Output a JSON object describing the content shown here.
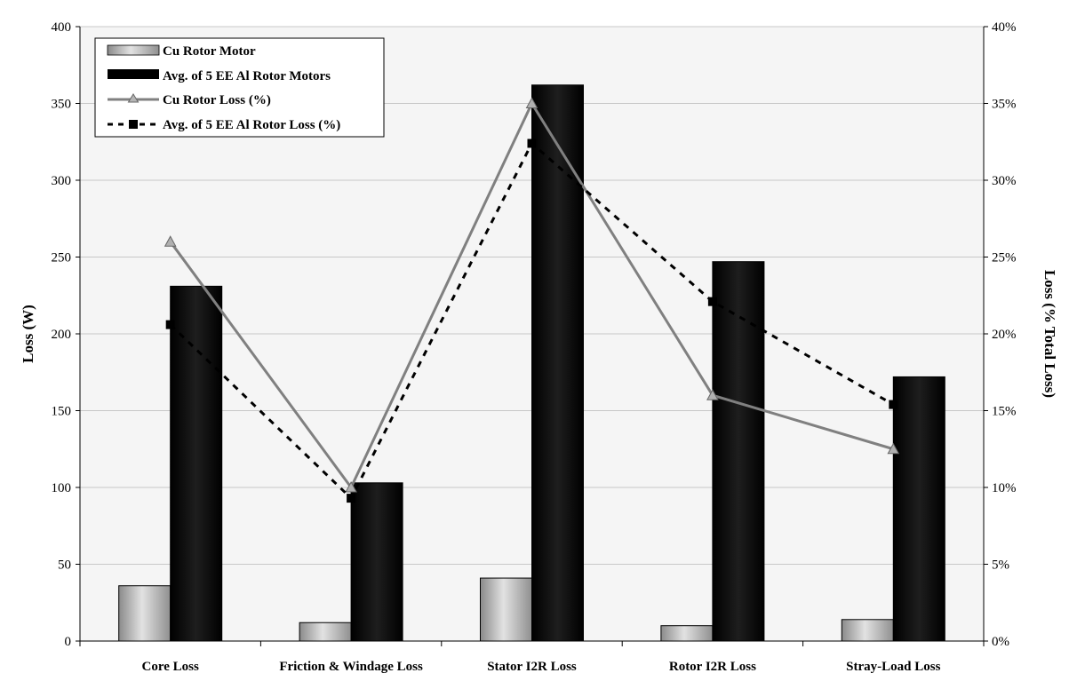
{
  "chart_data": {
    "type": "bar",
    "categories": [
      "Core Loss",
      "Friction & Windage Loss",
      "Stator I2R Loss",
      "Rotor I2R Loss",
      "Stray-Load Loss"
    ],
    "series": [
      {
        "name": "Cu Rotor Motor",
        "kind": "bar",
        "axis": "left",
        "color": "#b5b5b5",
        "values": [
          36,
          12,
          41,
          10,
          14
        ]
      },
      {
        "name": "Avg. of 5 EE Al Rotor Motors",
        "kind": "bar",
        "axis": "left",
        "color": "#000000",
        "values": [
          231,
          103,
          362,
          247,
          172
        ]
      },
      {
        "name": "Cu Rotor Loss (%)",
        "kind": "line",
        "axis": "right",
        "color": "#808080",
        "marker": "triangle",
        "values": [
          26,
          10,
          35,
          16,
          12.5
        ]
      },
      {
        "name": "Avg. of 5 EE Al Rotor Loss (%)",
        "kind": "line",
        "axis": "right",
        "color": "#000000",
        "marker": "square",
        "dashed": true,
        "values": [
          20.6,
          9.3,
          32.4,
          22.1,
          15.4
        ]
      }
    ],
    "ylabel": "Loss (W)",
    "y2label": "Loss (% Total Loss)",
    "ylim": [
      0,
      400
    ],
    "y2lim": [
      0,
      40
    ],
    "yticks": [
      "0",
      "50",
      "100",
      "150",
      "200",
      "250",
      "300",
      "350",
      "400"
    ],
    "y2ticks": [
      "0%",
      "5%",
      "10%",
      "15%",
      "20%",
      "25%",
      "30%",
      "35%",
      "40%"
    ],
    "grid": true,
    "legend_position": "top-left"
  }
}
